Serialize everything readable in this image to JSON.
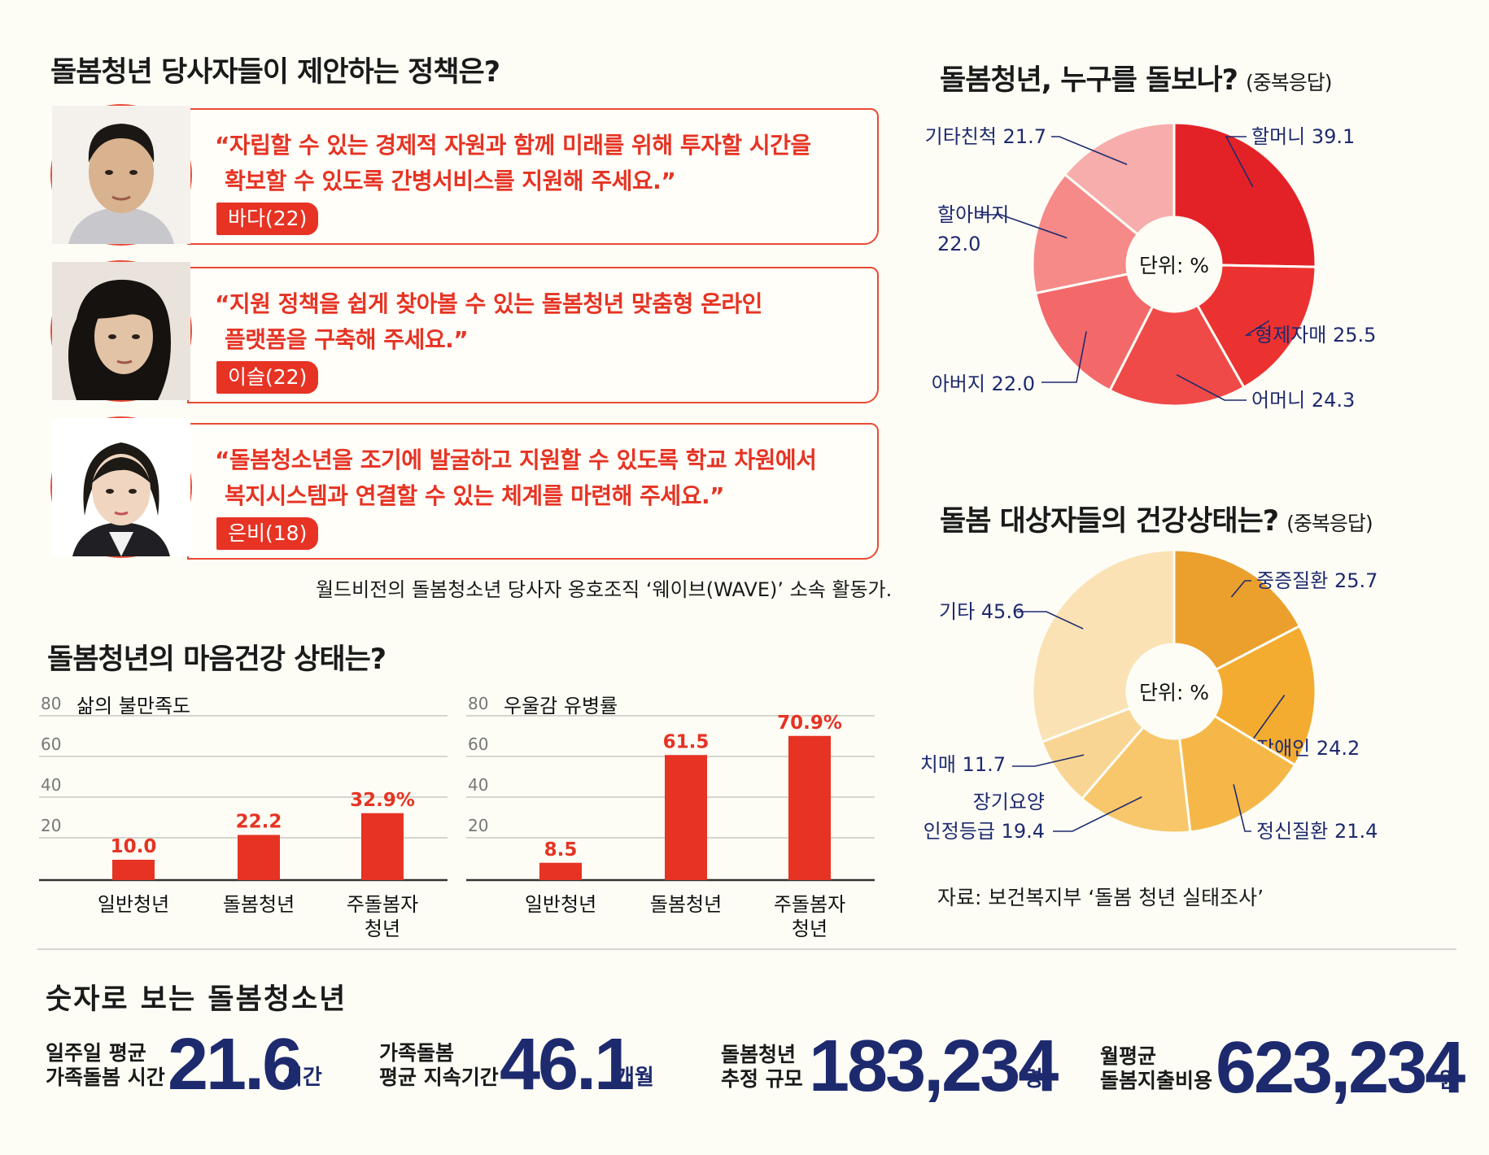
{
  "policy": {
    "title": "돌봄청년 당사자들이 제안하는 정책은?",
    "quotes": [
      {
        "line1": "“자립할 수 있는 경제적 자원과 함께 미래를 위해 투자할 시간을",
        "line2": "확보할 수 있도록 간병서비스를 지원해 주세요.”",
        "name": "바다(22)"
      },
      {
        "line1": "“지원 정책을 쉽게 찾아볼 수 있는 돌봄청년 맞춤형 온라인",
        "line2": "플랫폼을 구축해 주세요.”",
        "name": "이슬(22)"
      },
      {
        "line1": "“돌봄청소년을 조기에 발굴하고 지원할 수 있도록 학교 차원에서",
        "line2": "복지시스템과 연결할 수 있는 체계를 마련해 주세요.”",
        "name": "은비(18)"
      }
    ],
    "caption": "월드비전의 돌봄청소년 당사자 옹호조직 ‘웨이브(WAVE)’ 소속 활동가."
  },
  "mental": {
    "title": "돌봄청년의 마음건강 상태는?"
  },
  "who_care": {
    "title": "돌봄청년, 누구를 돌보나?",
    "sub": "(중복응답)"
  },
  "health": {
    "title": "돌봄 대상자들의 건강상태는?",
    "sub": "(중복응답)",
    "source": "자료: 보건복지부 ‘돌봄 청년 실태조사’"
  },
  "numbers": {
    "title": "숫자로 보는 돌봄청소년",
    "items": [
      {
        "label1": "일주일 평균",
        "label2": "가족돌봄 시간",
        "value": "21.6",
        "unit": "시간"
      },
      {
        "label1": "가족돌봄",
        "label2": "평균 지속기간",
        "value": "46.1",
        "unit": "개월"
      },
      {
        "label1": "돌봄청년",
        "label2": "추정 규모",
        "value": "183,234",
        "unit": "명"
      },
      {
        "label1": "월평균",
        "label2": "돌봄지출비용",
        "value": "623,234",
        "unit": "원"
      }
    ]
  },
  "colors": {
    "red": "#e63323",
    "navy": "#1e2a6e"
  },
  "chart_data": [
    {
      "type": "bar",
      "title": "삶의 불만족도",
      "categories": [
        "일반청년",
        "돌봄청년",
        "주돌봄자 청년"
      ],
      "category_lines": [
        [
          "일반청년"
        ],
        [
          "돌봄청년"
        ],
        [
          "주돌봄자",
          "청년"
        ]
      ],
      "values": [
        10.0,
        22.2,
        32.9
      ],
      "value_labels": [
        "10.0",
        "22.2",
        "32.9%"
      ],
      "yticks": [
        "20",
        "40",
        "60",
        "80"
      ],
      "ylim": [
        0,
        80
      ],
      "color": "#e63323"
    },
    {
      "type": "bar",
      "title": "우울감 유병률",
      "categories": [
        "일반청년",
        "돌봄청년",
        "주돌봄자 청년"
      ],
      "category_lines": [
        [
          "일반청년"
        ],
        [
          "돌봄청년"
        ],
        [
          "주돌봄자",
          "청년"
        ]
      ],
      "values": [
        8.5,
        61.5,
        70.9
      ],
      "value_labels": [
        "8.5",
        "61.5",
        "70.9%"
      ],
      "yticks": [
        "20",
        "40",
        "60",
        "80"
      ],
      "ylim": [
        0,
        80
      ],
      "color": "#e63323"
    },
    {
      "type": "pie",
      "title": "돌봄청년, 누구를 돌보나?",
      "center_label": "단위: %",
      "slices": [
        {
          "label": "할머니",
          "value": 39.1,
          "display": "할머니 39.1",
          "color": "#e32228"
        },
        {
          "label": "형제자매",
          "value": 25.5,
          "display": "형제자매 25.5",
          "color": "#ec3231"
        },
        {
          "label": "어머니",
          "value": 24.3,
          "display": "어머니 24.3",
          "color": "#ef4a48"
        },
        {
          "label": "아버지",
          "value": 22.0,
          "display": "아버지 22.0",
          "color": "#f3696a"
        },
        {
          "label": "할아버지",
          "value": 22.0,
          "display": "할아버지\n22.0",
          "color": "#f58a89"
        },
        {
          "label": "기타친척",
          "value": 21.7,
          "display": "기타친척 21.7",
          "color": "#f7adac"
        }
      ]
    },
    {
      "type": "pie",
      "title": "돌봄 대상자들의 건강상태는?",
      "center_label": "단위: %",
      "slices": [
        {
          "label": "중증질환",
          "value": 25.7,
          "display": "중증질환 25.7",
          "color": "#eba02d"
        },
        {
          "label": "장애인",
          "value": 24.2,
          "display": "장애인 24.2",
          "color": "#f3ac30"
        },
        {
          "label": "정신질환",
          "value": 21.4,
          "display": "정신질환 21.4",
          "color": "#f5b848"
        },
        {
          "label": "장기요양 인정등급",
          "value": 19.4,
          "display": "장기요양\n인정등급 19.4",
          "color": "#f8c76b"
        },
        {
          "label": "치매",
          "value": 11.7,
          "display": "치매 11.7",
          "color": "#f9d593"
        },
        {
          "label": "기타",
          "value": 45.6,
          "display": "기타 45.6",
          "color": "#fbe2b5"
        }
      ]
    }
  ]
}
